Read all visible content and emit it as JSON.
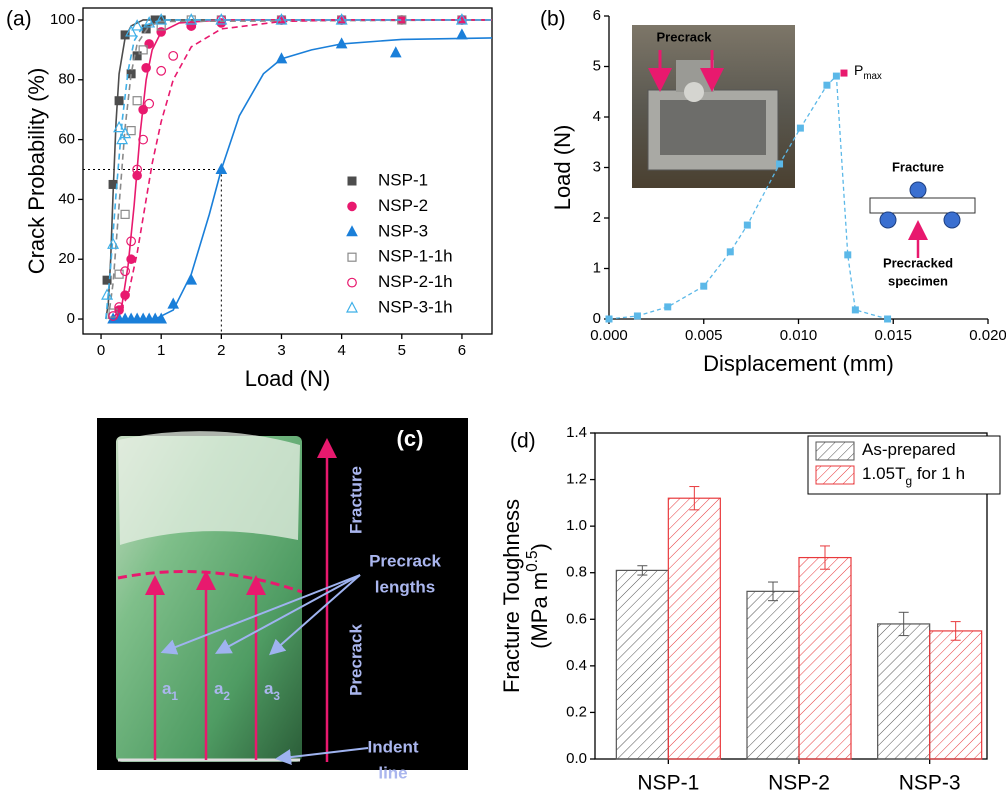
{
  "chart_data": [
    {
      "type": "scatter",
      "panel_label": "(a)",
      "xlabel": "Load (N)",
      "ylabel": "Crack Probability (%)",
      "xlim": [
        -0.3,
        6.5
      ],
      "ylim": [
        -5,
        104
      ],
      "xticks": [
        0,
        1,
        2,
        3,
        4,
        5,
        6
      ],
      "yticks": [
        0,
        20,
        40,
        60,
        80,
        100
      ],
      "reference": {
        "x": 2,
        "y": 50
      },
      "series": [
        {
          "name": "NSP-1",
          "color": "#4d4d4d",
          "marker": "square",
          "filled": true,
          "x": [
            0.1,
            0.2,
            0.3,
            0.4,
            0.5,
            0.6,
            0.75,
            0.9,
            1.0
          ],
          "values": [
            13,
            45,
            73,
            95,
            82,
            88,
            97,
            100,
            100
          ],
          "fit": {
            "dash": false,
            "x": [
              0.08,
              0.12,
              0.16,
              0.2,
              0.25,
              0.3,
              0.4,
              0.5,
              0.7,
              1.0,
              6.5
            ],
            "values": [
              0,
              5,
              20,
              42,
              66,
              82,
              94,
              98,
              100,
              100,
              100
            ]
          }
        },
        {
          "name": "NSP-2",
          "color": "#e8196e",
          "marker": "circle",
          "filled": true,
          "x": [
            0.3,
            0.4,
            0.5,
            0.6,
            0.7,
            0.75,
            0.8,
            1.0,
            1.5,
            2,
            3,
            4,
            5,
            6
          ],
          "values": [
            3,
            8,
            20,
            48,
            70,
            84,
            92,
            96,
            98,
            99,
            100,
            100,
            100,
            100
          ],
          "fit": {
            "dash": false,
            "x": [
              0.2,
              0.35,
              0.45,
              0.55,
              0.6,
              0.65,
              0.75,
              0.85,
              1.0,
              1.3,
              2,
              6.5
            ],
            "values": [
              0,
              5,
              18,
              38,
              50,
              62,
              80,
              90,
              96,
              99,
              100,
              100
            ]
          }
        },
        {
          "name": "NSP-3",
          "color": "#1a7fd9",
          "marker": "triangle",
          "filled": true,
          "x": [
            0.2,
            0.3,
            0.4,
            0.5,
            0.6,
            0.7,
            0.8,
            0.9,
            1.0,
            1.2,
            1.5,
            2,
            3,
            4,
            4.9,
            6
          ],
          "values": [
            0,
            0,
            0,
            0,
            0,
            0,
            0,
            0,
            0,
            5,
            13,
            50,
            87,
            92,
            89,
            95
          ],
          "fit": {
            "dash": false,
            "x": [
              0.9,
              1.2,
              1.5,
              1.8,
              2.0,
              2.3,
              2.7,
              3,
              3.5,
              4,
              5,
              6.5
            ],
            "values": [
              0,
              3,
              15,
              35,
              50,
              68,
              82,
              87,
              90,
              92,
              93.5,
              94
            ]
          }
        },
        {
          "name": "NSP-1-1h",
          "color": "#8a8a8a",
          "marker": "square",
          "filled": false,
          "x": [
            0.2,
            0.3,
            0.4,
            0.5,
            0.6,
            0.7,
            1.0,
            1.5,
            2,
            3,
            4,
            5,
            6
          ],
          "values": [
            2,
            15,
            35,
            63,
            73,
            90,
            98,
            100,
            100,
            100,
            100,
            100,
            100
          ],
          "fit": {
            "dash": true,
            "x": [
              0.12,
              0.2,
              0.3,
              0.4,
              0.5,
              0.6,
              0.8,
              1.0,
              6.5
            ],
            "values": [
              0,
              12,
              38,
              64,
              82,
              92,
              98,
              99.5,
              100
            ]
          }
        },
        {
          "name": "NSP-2-1h",
          "color": "#e8196e",
          "marker": "circle",
          "filled": false,
          "x": [
            0.2,
            0.3,
            0.4,
            0.5,
            0.6,
            0.7,
            0.8,
            1.0,
            1.2,
            1.5,
            2,
            3,
            4,
            6
          ],
          "values": [
            1,
            4,
            16,
            26,
            50,
            60,
            72,
            83,
            88,
            98,
            100,
            100,
            100,
            100
          ],
          "fit": {
            "dash": true,
            "x": [
              0.25,
              0.45,
              0.6,
              0.75,
              0.85,
              1.0,
              1.2,
              1.5,
              2,
              3,
              4,
              6.5
            ],
            "values": [
              0,
              8,
              22,
              40,
              52,
              66,
              80,
              91,
              97,
              99.5,
              100,
              100
            ]
          }
        },
        {
          "name": "NSP-3-1h",
          "color": "#3fb0e8",
          "marker": "triangle",
          "filled": false,
          "x": [
            0.1,
            0.2,
            0.3,
            0.35,
            0.4,
            0.5,
            0.6,
            0.8,
            1,
            1.5,
            2,
            3,
            4,
            6
          ],
          "values": [
            8,
            25,
            64,
            60,
            62,
            96,
            98,
            99,
            100,
            100,
            100,
            100,
            100,
            100
          ],
          "fit": {
            "dash": true,
            "x": [
              0.08,
              0.15,
              0.25,
              0.35,
              0.45,
              0.55,
              0.7,
              1.0,
              6.5
            ],
            "values": [
              0,
              15,
              42,
              66,
              83,
              93,
              98,
              100,
              100
            ]
          }
        }
      ]
    },
    {
      "type": "line",
      "panel_label": "(b)",
      "xlabel": "Displacement (mm)",
      "ylabel": "Load (N)",
      "xlim": [
        0,
        0.02
      ],
      "ylim": [
        0,
        6
      ],
      "xticks": [
        {
          "value": 0,
          "label": "0.000"
        },
        {
          "value": 0.005,
          "label": "0.005"
        },
        {
          "value": 0.01,
          "label": "0.010"
        },
        {
          "value": 0.015,
          "label": "0.015"
        },
        {
          "value": 0.02,
          "label": "0.020"
        }
      ],
      "yticks": [
        0,
        1,
        2,
        3,
        4,
        5,
        6
      ],
      "series": [
        {
          "color": "#5bb8e8",
          "x": [
            0,
            0.0015,
            0.0031,
            0.005,
            0.0064,
            0.0073,
            0.009,
            0.0101,
            0.0115,
            0.012,
            0.0126,
            0.013,
            0.0147
          ],
          "values": [
            0,
            0.06,
            0.24,
            0.65,
            1.33,
            1.86,
            3.07,
            3.78,
            4.63,
            4.81,
            1.27,
            0.18,
            0
          ]
        },
        {
          "color": "#e8196e",
          "label": "P",
          "label_sub": "max",
          "x": [
            0.0124
          ],
          "values": [
            4.87
          ]
        }
      ],
      "insets": {
        "photo_label": "Precrack",
        "diagram_title": "Fracture",
        "diagram_caption": [
          "Precracked",
          "specimen"
        ]
      }
    },
    {
      "type": "photo",
      "panel_label": "(c)",
      "labels": {
        "fracture": "Fracture",
        "precrack": "Precrack",
        "lengths": [
          "Precrack",
          "lengths"
        ],
        "indent": [
          "Indent",
          "line"
        ],
        "symbols": [
          [
            {
              "text": "a"
            },
            {
              "text": "1",
              "sub": true
            }
          ],
          [
            {
              "text": "a"
            },
            {
              "text": "2",
              "sub": true
            }
          ],
          [
            {
              "text": "a"
            },
            {
              "text": "3",
              "sub": true
            }
          ]
        ]
      }
    },
    {
      "type": "bar",
      "panel_label": "(d)",
      "ylabel": [
        [
          {
            "text": "Fracture Toughness"
          }
        ],
        [
          {
            "text": "(MPa m"
          },
          {
            "text": "0.5",
            "sup": true
          },
          {
            "text": ")"
          }
        ]
      ],
      "categories": [
        "NSP-1",
        "NSP-2",
        "NSP-3"
      ],
      "ylim": [
        0,
        1.4
      ],
      "yticks": [
        {
          "value": 0,
          "label": "0.0"
        },
        0.2,
        0.4,
        0.6,
        0.8,
        {
          "value": 1,
          "label": "1.0"
        },
        1.2,
        1.4
      ],
      "series": [
        {
          "name": [
            {
              "text": "As-prepared"
            }
          ],
          "color": "#555555",
          "values": [
            0.81,
            0.72,
            0.58
          ],
          "errors": [
            0.02,
            0.04,
            0.05
          ]
        },
        {
          "name": [
            {
              "text": "1.05T"
            },
            {
              "text": "g",
              "sub": true
            },
            {
              "text": " for 1 h"
            }
          ],
          "color": "#e8393c",
          "values": [
            1.12,
            0.865,
            0.55
          ],
          "errors": [
            0.05,
            0.05,
            0.04
          ]
        }
      ]
    }
  ]
}
